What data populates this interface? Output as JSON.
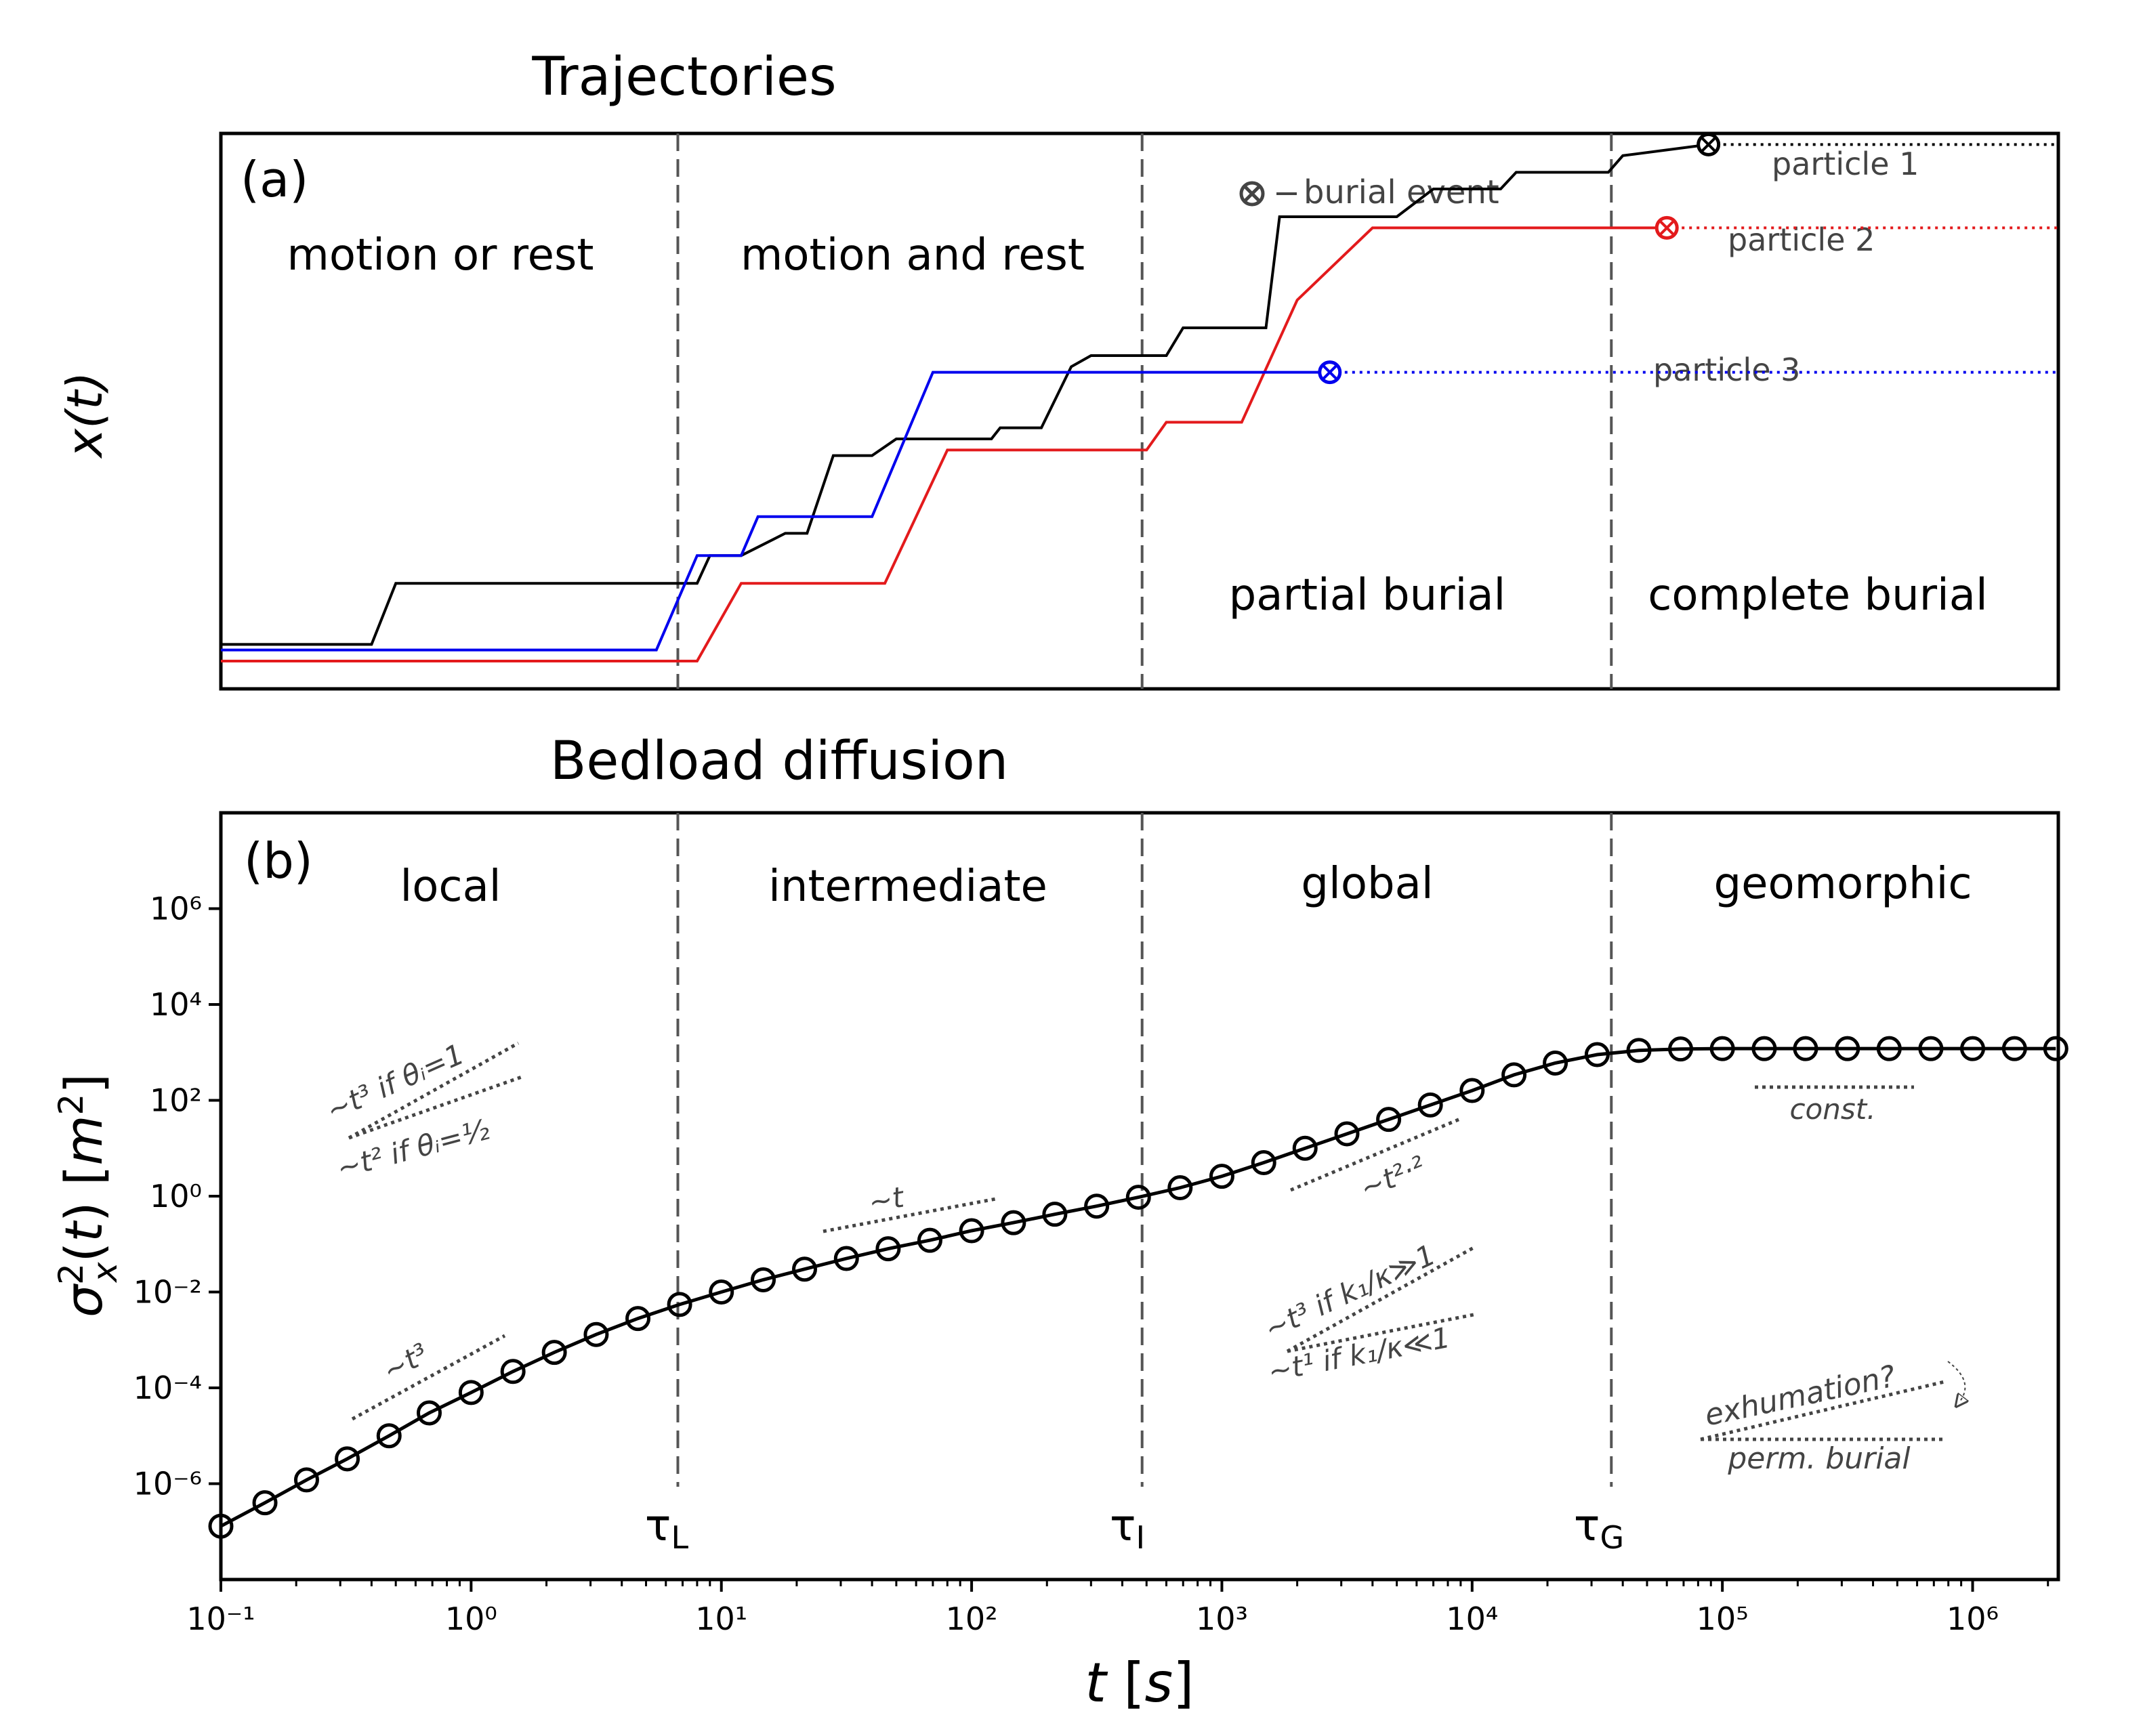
{
  "panel_a": {
    "title": "Trajectories",
    "tag": "(a)",
    "ylabel": "x(t)",
    "regions": [
      "motion or rest",
      "motion and rest",
      "partial burial",
      "complete burial"
    ],
    "legend_label": "burial event",
    "particle_labels": [
      "particle 1",
      "particle 2",
      "particle 3"
    ],
    "colors": {
      "particle1": "#000000",
      "particle2": "#e31a1c",
      "particle3": "#0000ee"
    }
  },
  "panel_b": {
    "title": "Bedload diffusion",
    "tag": "(b)",
    "regions": [
      "local",
      "intermediate",
      "global",
      "geomorphic"
    ],
    "tau_labels": [
      "τL",
      "τI",
      "τG"
    ],
    "xlabel": "t [s]",
    "ylabel": "σ²x(t) [m²]",
    "annotations": {
      "t3_theta1": "~t³ if θᵢ=1",
      "t2_theta_half": "~t² if θᵢ=½",
      "t_local": "~t³",
      "t_inter": "~t",
      "t_global": "~t²·²",
      "t3_k_big": "~t³ if k₁/κ≫1",
      "t1_k_small": "~t¹ if k₁/κ≪1",
      "const": "const.",
      "exhumation": "exhumation?",
      "perm_burial": "perm. burial"
    }
  },
  "chart_data": [
    {
      "type": "line",
      "title": "Trajectories",
      "ylabel": "x(t)",
      "xscale": "log",
      "xlim": [
        0.1,
        2200000
      ],
      "yticks": "none",
      "vlines": [
        6.7,
        480,
        36000
      ],
      "series": [
        {
          "name": "particle 1",
          "color": "#000000",
          "buried_at": 88000,
          "x": [
            0.1,
            0.4,
            0.5,
            8,
            9,
            12,
            18,
            22,
            28,
            40,
            50,
            60,
            70,
            120,
            130,
            190,
            250,
            300,
            450,
            600,
            700,
            1500,
            1700,
            5000,
            7000,
            13000,
            15000,
            25000,
            28000,
            35000,
            40000,
            88000,
            2200000
          ],
          "y": [
            0.08,
            0.08,
            0.19,
            0.19,
            0.24,
            0.24,
            0.28,
            0.28,
            0.42,
            0.42,
            0.45,
            0.45,
            0.45,
            0.45,
            0.47,
            0.47,
            0.58,
            0.6,
            0.6,
            0.6,
            0.65,
            0.65,
            0.85,
            0.85,
            0.9,
            0.9,
            0.93,
            0.93,
            0.93,
            0.93,
            0.96,
            0.98,
            0.98
          ]
        },
        {
          "name": "particle 2",
          "color": "#e31a1c",
          "buried_at": 60000,
          "x": [
            0.1,
            8,
            12,
            45,
            80,
            500,
            600,
            850,
            1200,
            2000,
            4000,
            60000,
            2200000
          ],
          "y": [
            0.05,
            0.05,
            0.19,
            0.19,
            0.43,
            0.43,
            0.48,
            0.48,
            0.48,
            0.7,
            0.83,
            0.83,
            0.83
          ]
        },
        {
          "name": "particle 3",
          "color": "#0000ee",
          "buried_at": 2700,
          "x": [
            0.1,
            5.5,
            8,
            12,
            14,
            18,
            40,
            70,
            200,
            2700,
            2200000
          ],
          "y": [
            0.07,
            0.07,
            0.24,
            0.24,
            0.31,
            0.31,
            0.31,
            0.57,
            0.57,
            0.57,
            0.57
          ]
        }
      ]
    },
    {
      "type": "line",
      "title": "Bedload diffusion",
      "xlabel": "t [s]",
      "ylabel": "σ²x(t) [m²]",
      "xscale": "log",
      "yscale": "log",
      "xlim": [
        0.1,
        2200000
      ],
      "ylim": [
        1e-08,
        100000000.0
      ],
      "xticks": [
        "10⁻¹",
        "10⁰",
        "10¹",
        "10²",
        "10³",
        "10⁴",
        "10⁵",
        "10⁶"
      ],
      "yticks": [
        "10⁻⁶",
        "10⁻⁴",
        "10⁻²",
        "10⁰",
        "10²",
        "10⁴",
        "10⁶"
      ],
      "vlines": [
        6.7,
        480,
        36000
      ],
      "series": [
        {
          "name": "",
          "marker": "circle",
          "x": [
            0.1,
            0.15,
            0.22,
            0.32,
            0.47,
            0.68,
            1.0,
            1.47,
            2.15,
            3.16,
            4.64,
            6.81,
            10.0,
            14.7,
            21.5,
            31.6,
            46.4,
            68.1,
            100,
            147,
            215,
            316,
            464,
            681,
            1000,
            1470,
            2150,
            3160,
            4640,
            6810,
            10000,
            14700,
            21500,
            31600,
            46400,
            68100,
            100000,
            147000,
            215000,
            316000,
            464000,
            681000,
            1000000,
            1470000,
            2150000
          ],
          "y": [
            1.3e-07,
            4e-07,
            1.2e-06,
            3.3e-06,
            1e-05,
            3e-05,
            8e-05,
            0.00022,
            0.00055,
            0.0013,
            0.0028,
            0.0055,
            0.01,
            0.018,
            0.03,
            0.05,
            0.08,
            0.12,
            0.19,
            0.28,
            0.42,
            0.62,
            0.95,
            1.5,
            2.6,
            5,
            10,
            20,
            40,
            80,
            160,
            340,
            600,
            900,
            1100,
            1180,
            1200,
            1200,
            1200,
            1200,
            1200,
            1200,
            1200,
            1200,
            1200
          ]
        }
      ]
    }
  ]
}
